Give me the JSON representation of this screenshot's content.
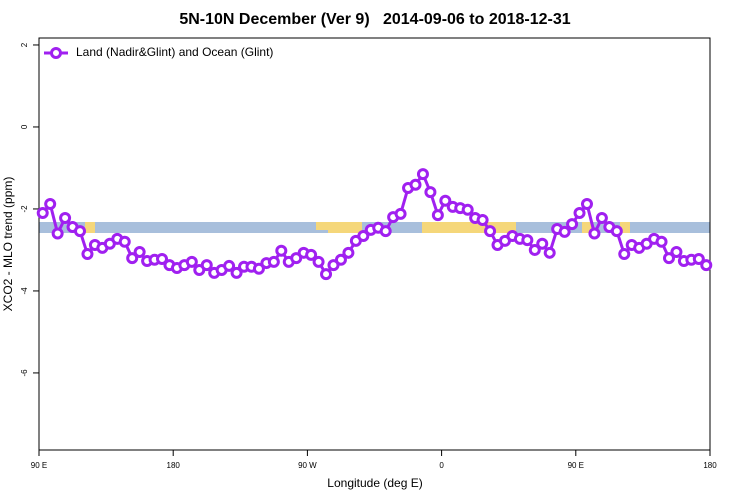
{
  "chart_data": {
    "type": "line",
    "title": "5N-10N December (Ver 9)   2014-09-06 to 2018-12-31",
    "xlabel": "Longitude (deg E)",
    "ylabel": "XCO2 - MLO trend (ppm)",
    "legend": "upper left",
    "x": [
      92.5,
      97.5,
      102.5,
      107.5,
      112.5,
      117.5,
      122.5,
      127.5,
      132.5,
      137.5,
      142.5,
      147.5,
      152.5,
      157.5,
      162.5,
      167.5,
      172.5,
      177.5,
      182.5,
      187.5,
      192.5,
      197.5,
      202.5,
      207.5,
      212.5,
      217.5,
      222.5,
      227.5,
      232.5,
      237.5,
      242.5,
      247.5,
      252.5,
      257.5,
      262.5,
      267.5,
      272.5,
      277.5,
      282.5,
      287.5,
      292.5,
      297.5,
      302.5,
      307.5,
      312.5,
      317.5,
      322.5,
      327.5,
      332.5,
      337.5,
      342.5,
      347.5,
      352.5,
      357.5,
      362.5,
      367.5,
      372.5,
      377.5,
      382.5,
      387.5,
      392.5,
      397.5,
      402.5,
      407.5,
      412.5,
      417.5,
      422.5,
      427.5,
      432.5,
      437.5,
      442.5,
      447.5,
      452.5,
      457.5,
      462.5,
      467.5,
      472.5,
      477.5,
      482.5,
      487.5,
      492.5,
      497.5,
      502.5,
      507.5,
      512.5,
      517.5,
      522.5,
      527.5,
      532.5,
      537.5
    ],
    "series": [
      {
        "name": "Land (Nadir&Glint) and Ocean (Glint)",
        "color": "#a020f0",
        "values": [
          -2.1,
          -1.88,
          -2.6,
          -2.22,
          -2.44,
          -2.54,
          -3.1,
          -2.88,
          -2.95,
          -2.85,
          -2.73,
          -2.8,
          -3.2,
          -3.05,
          -3.27,
          -3.24,
          -3.22,
          -3.37,
          -3.44,
          -3.37,
          -3.29,
          -3.49,
          -3.37,
          -3.56,
          -3.49,
          -3.39,
          -3.56,
          -3.41,
          -3.41,
          -3.46,
          -3.32,
          -3.29,
          -3.02,
          -3.29,
          -3.2,
          -3.07,
          -3.12,
          -3.29,
          -3.59,
          -3.37,
          -3.24,
          -3.07,
          -2.78,
          -2.66,
          -2.51,
          -2.46,
          -2.54,
          -2.2,
          -2.12,
          -1.49,
          -1.41,
          -1.15,
          -1.59,
          -2.15,
          -1.8,
          -1.95,
          -1.98,
          -2.02,
          -2.22,
          -2.27,
          -2.54,
          -2.88,
          -2.78,
          -2.66,
          -2.73,
          -2.76,
          -3.0,
          -2.85,
          -3.07,
          -2.49,
          -2.56,
          -2.37,
          -2.1,
          -1.88,
          -2.6,
          -2.22,
          -2.44,
          -2.54,
          -3.1,
          -2.88,
          -2.95,
          -2.85,
          -2.73,
          -2.8,
          -3.2,
          -3.05,
          -3.27,
          -3.24,
          -3.22,
          -3.37
        ]
      }
    ],
    "xlim": [
      90,
      540
    ],
    "xticks": [
      {
        "value": 90,
        "label": "90 E"
      },
      {
        "value": 180,
        "label": "180"
      },
      {
        "value": 270,
        "label": "90 W"
      },
      {
        "value": 360,
        "label": "0"
      },
      {
        "value": 450,
        "label": "90 E"
      },
      {
        "value": 540,
        "label": "180"
      }
    ],
    "ylim": [
      -7.88,
      2.17
    ],
    "yticks": [
      2,
      0,
      -2,
      -4,
      -6
    ]
  }
}
